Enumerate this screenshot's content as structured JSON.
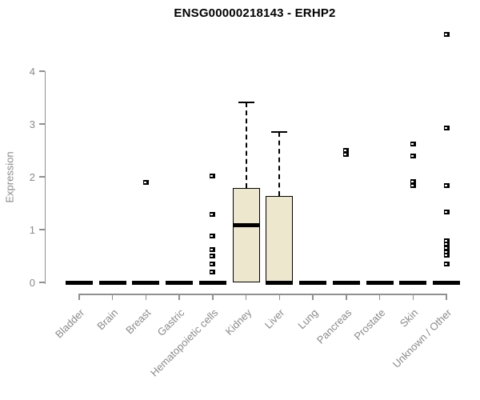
{
  "chart_data": {
    "type": "boxplot",
    "title": "ENSG00000218143 - ERHP2",
    "ylabel": "Expression",
    "xlabel": "",
    "ylim": [
      0,
      4.8
    ],
    "yticks": [
      0,
      1,
      2,
      3,
      4
    ],
    "grid": false,
    "legend": "none",
    "categories": [
      "Bladder",
      "Brain",
      "Breast",
      "Gastric",
      "Hematopoietic cells",
      "Kidney",
      "Liver",
      "Lung",
      "Pancreas",
      "Prostate",
      "Skin",
      "Unknown / Other"
    ],
    "boxes": [
      {
        "category": "Bladder",
        "whisker_low": 0,
        "q1": 0,
        "median": 0,
        "q3": 0,
        "whisker_high": 0,
        "outliers": []
      },
      {
        "category": "Brain",
        "whisker_low": 0,
        "q1": 0,
        "median": 0,
        "q3": 0,
        "whisker_high": 0,
        "outliers": []
      },
      {
        "category": "Breast",
        "whisker_low": 0,
        "q1": 0,
        "median": 0,
        "q3": 0,
        "whisker_high": 0,
        "outliers": [
          1.89
        ]
      },
      {
        "category": "Gastric",
        "whisker_low": 0,
        "q1": 0,
        "median": 0,
        "q3": 0,
        "whisker_high": 0,
        "outliers": []
      },
      {
        "category": "Hematopoietic cells",
        "whisker_low": 0,
        "q1": 0,
        "median": 0,
        "q3": 0,
        "whisker_high": 0,
        "outliers": [
          2.01,
          1.29,
          0.88,
          0.62,
          0.5,
          0.35,
          0.2
        ]
      },
      {
        "category": "Kidney",
        "whisker_low": 0,
        "q1": 0,
        "median": 1.08,
        "q3": 1.79,
        "whisker_high": 3.41,
        "outliers": []
      },
      {
        "category": "Liver",
        "whisker_low": 0,
        "q1": 0,
        "median": 0,
        "q3": 1.64,
        "whisker_high": 2.85,
        "outliers": []
      },
      {
        "category": "Lung",
        "whisker_low": 0,
        "q1": 0,
        "median": 0,
        "q3": 0,
        "whisker_high": 0,
        "outliers": []
      },
      {
        "category": "Pancreas",
        "whisker_low": 0,
        "q1": 0,
        "median": 0,
        "q3": 0,
        "whisker_high": 0,
        "outliers": [
          2.5,
          2.42
        ]
      },
      {
        "category": "Prostate",
        "whisker_low": 0,
        "q1": 0,
        "median": 0,
        "q3": 0,
        "whisker_high": 0,
        "outliers": []
      },
      {
        "category": "Skin",
        "whisker_low": 0,
        "q1": 0,
        "median": 0,
        "q3": 0,
        "whisker_high": 0,
        "outliers": [
          2.62,
          2.39,
          1.91,
          1.83
        ]
      },
      {
        "category": "Unknown / Other",
        "whisker_low": 0,
        "q1": 0,
        "median": 0,
        "q3": 0,
        "whisker_high": 0,
        "outliers": [
          4.7,
          2.92,
          1.83,
          1.33,
          0.79,
          0.72,
          0.65,
          0.58,
          0.51,
          0.35
        ]
      }
    ],
    "colors": {
      "box_fill": "#ede8cd",
      "box_border": "#000000",
      "axis": "#909090",
      "tick_text": "#8a8a8a",
      "title_text": "#000000",
      "background": "#ffffff"
    }
  }
}
